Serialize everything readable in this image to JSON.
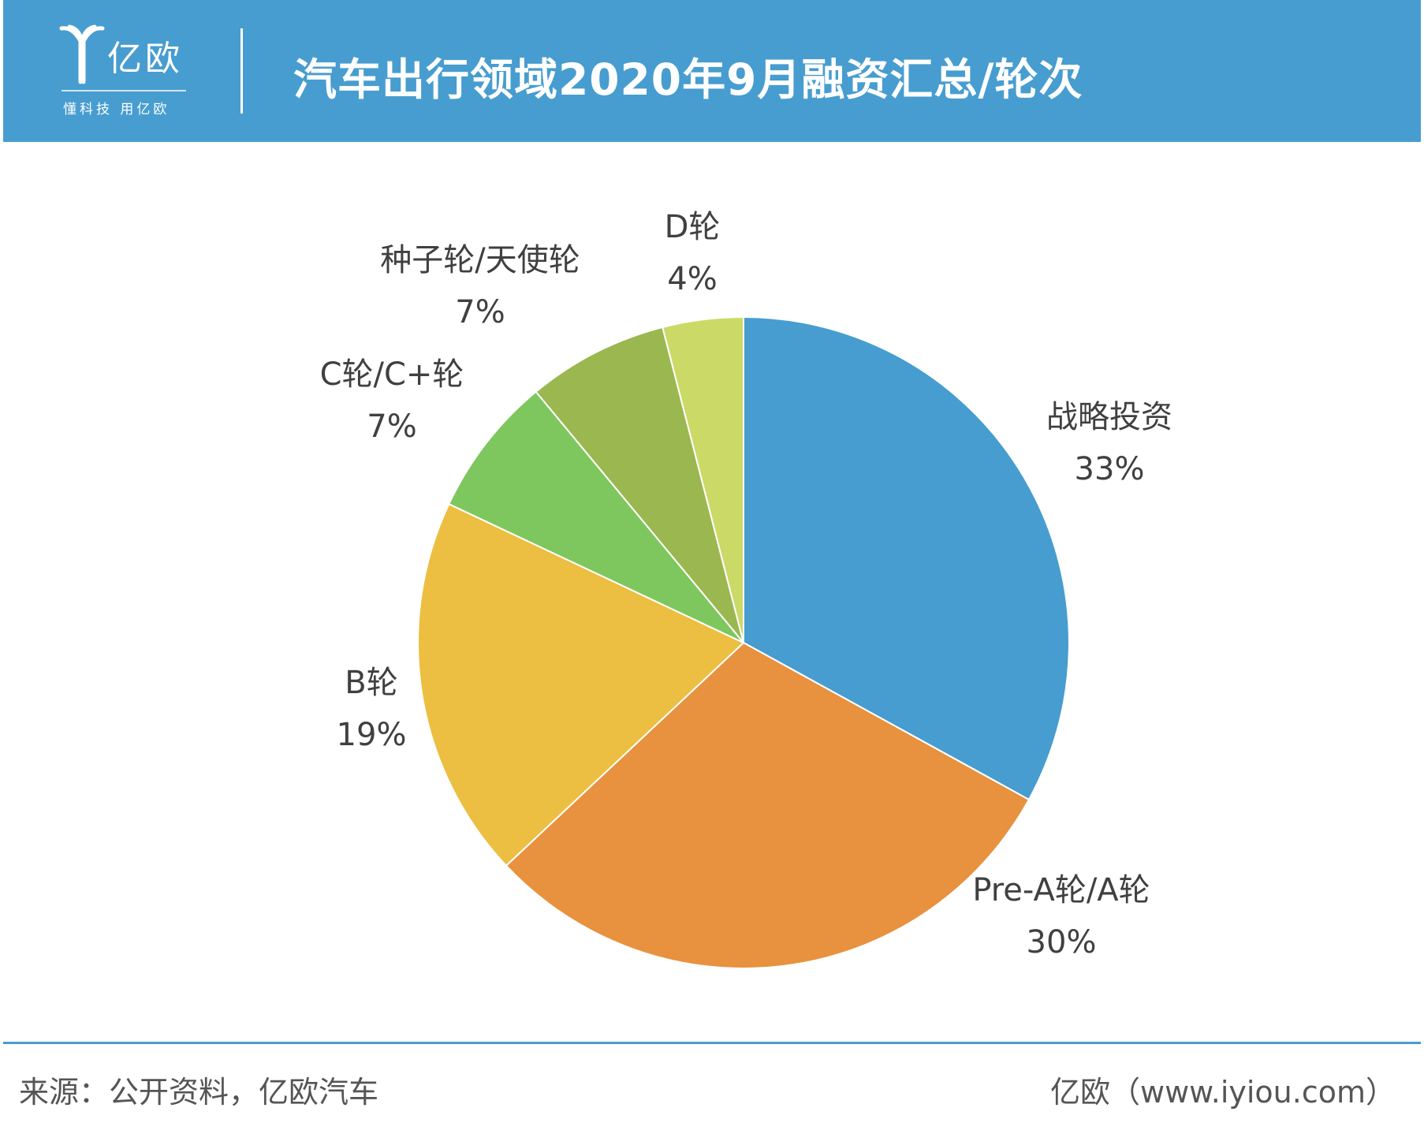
{
  "header": {
    "logo_name": "亿欧",
    "logo_slogan": "懂科技 用亿欧",
    "title": "汽车出行领域2020年9月融资汇总/轮次"
  },
  "chart_data": {
    "type": "pie",
    "title": "汽车出行领域2020年9月融资汇总/轮次",
    "start": "12 o'clock",
    "direction": "clockwise",
    "slices": [
      {
        "name": "战略投资",
        "value": 33,
        "label": "33%",
        "color": "#479dcf"
      },
      {
        "name": "Pre-A轮/A轮",
        "value": 30,
        "label": "30%",
        "color": "#e8913e"
      },
      {
        "name": "B轮",
        "value": 19,
        "label": "19%",
        "color": "#ecbe41"
      },
      {
        "name": "C轮/C+轮",
        "value": 7,
        "label": "7%",
        "color": "#7ec75e"
      },
      {
        "name": "种子轮/天使轮",
        "value": 7,
        "label": "7%",
        "color": "#9bb750"
      },
      {
        "name": "D轮",
        "value": 4,
        "label": "4%",
        "color": "#cbd967"
      }
    ]
  },
  "footer": {
    "source": "来源：公开资料，亿欧汽车",
    "site": "亿欧（www.iyiou.com）"
  }
}
